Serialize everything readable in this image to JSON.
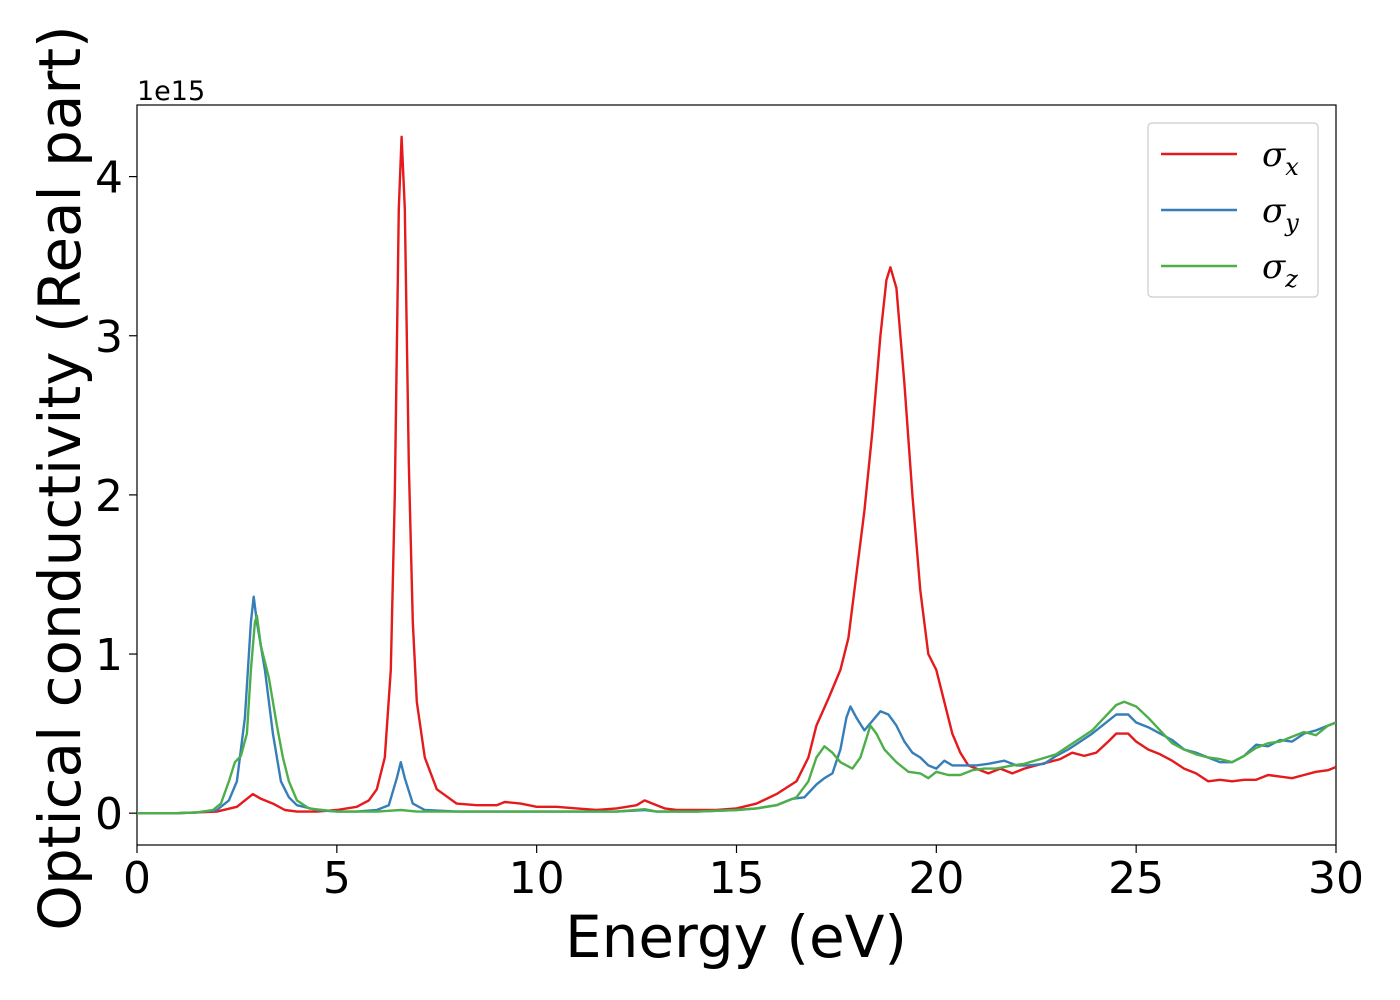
{
  "chart_data": {
    "type": "line",
    "title": "",
    "xlabel": "Energy (eV)",
    "ylabel": "Optical conductivity (Real part)",
    "y_offset_label": "1e15",
    "xlim": [
      0,
      30
    ],
    "ylim": [
      -0.2,
      4.45
    ],
    "x_ticks": [
      0,
      5,
      10,
      15,
      20,
      25,
      30
    ],
    "y_ticks": [
      0,
      1,
      2,
      3,
      4
    ],
    "grid": false,
    "legend_position": "top-right",
    "series": [
      {
        "name": "σx",
        "label_base": "σ",
        "label_sub": "x",
        "color": "#e41a1c",
        "points": [
          [
            0,
            0
          ],
          [
            1,
            0
          ],
          [
            1.5,
            0.005
          ],
          [
            2,
            0.01
          ],
          [
            2.5,
            0.04
          ],
          [
            2.7,
            0.08
          ],
          [
            2.9,
            0.12
          ],
          [
            3.1,
            0.09
          ],
          [
            3.4,
            0.06
          ],
          [
            3.7,
            0.02
          ],
          [
            4,
            0.01
          ],
          [
            4.5,
            0.01
          ],
          [
            5,
            0.02
          ],
          [
            5.5,
            0.04
          ],
          [
            5.8,
            0.08
          ],
          [
            6.0,
            0.15
          ],
          [
            6.2,
            0.35
          ],
          [
            6.35,
            0.9
          ],
          [
            6.45,
            2.0
          ],
          [
            6.55,
            3.8
          ],
          [
            6.62,
            4.25
          ],
          [
            6.7,
            3.8
          ],
          [
            6.8,
            2.2
          ],
          [
            6.9,
            1.2
          ],
          [
            7.0,
            0.7
          ],
          [
            7.2,
            0.35
          ],
          [
            7.5,
            0.15
          ],
          [
            8,
            0.06
          ],
          [
            8.5,
            0.05
          ],
          [
            9.0,
            0.05
          ],
          [
            9.2,
            0.07
          ],
          [
            9.6,
            0.06
          ],
          [
            10,
            0.04
          ],
          [
            10.5,
            0.04
          ],
          [
            11,
            0.03
          ],
          [
            11.5,
            0.02
          ],
          [
            12,
            0.03
          ],
          [
            12.5,
            0.05
          ],
          [
            12.7,
            0.08
          ],
          [
            12.9,
            0.06
          ],
          [
            13.2,
            0.03
          ],
          [
            13.5,
            0.02
          ],
          [
            14,
            0.02
          ],
          [
            14.5,
            0.02
          ],
          [
            15,
            0.03
          ],
          [
            15.5,
            0.06
          ],
          [
            16,
            0.12
          ],
          [
            16.5,
            0.2
          ],
          [
            16.8,
            0.35
          ],
          [
            17.0,
            0.55
          ],
          [
            17.3,
            0.72
          ],
          [
            17.6,
            0.9
          ],
          [
            17.8,
            1.1
          ],
          [
            18.0,
            1.5
          ],
          [
            18.2,
            1.9
          ],
          [
            18.4,
            2.4
          ],
          [
            18.6,
            3.0
          ],
          [
            18.75,
            3.35
          ],
          [
            18.85,
            3.43
          ],
          [
            19.0,
            3.3
          ],
          [
            19.2,
            2.7
          ],
          [
            19.4,
            2.0
          ],
          [
            19.6,
            1.4
          ],
          [
            19.8,
            1.0
          ],
          [
            20.0,
            0.9
          ],
          [
            20.2,
            0.7
          ],
          [
            20.4,
            0.5
          ],
          [
            20.6,
            0.38
          ],
          [
            20.8,
            0.3
          ],
          [
            21,
            0.28
          ],
          [
            21.3,
            0.25
          ],
          [
            21.6,
            0.28
          ],
          [
            21.9,
            0.25
          ],
          [
            22.2,
            0.28
          ],
          [
            22.5,
            0.3
          ],
          [
            22.8,
            0.32
          ],
          [
            23.1,
            0.34
          ],
          [
            23.4,
            0.38
          ],
          [
            23.7,
            0.36
          ],
          [
            24.0,
            0.38
          ],
          [
            24.3,
            0.45
          ],
          [
            24.5,
            0.5
          ],
          [
            24.8,
            0.5
          ],
          [
            25,
            0.45
          ],
          [
            25.3,
            0.4
          ],
          [
            25.6,
            0.37
          ],
          [
            25.9,
            0.33
          ],
          [
            26.2,
            0.28
          ],
          [
            26.5,
            0.25
          ],
          [
            26.8,
            0.2
          ],
          [
            27.1,
            0.21
          ],
          [
            27.4,
            0.2
          ],
          [
            27.7,
            0.21
          ],
          [
            28.0,
            0.21
          ],
          [
            28.3,
            0.24
          ],
          [
            28.6,
            0.23
          ],
          [
            28.9,
            0.22
          ],
          [
            29.2,
            0.24
          ],
          [
            29.5,
            0.26
          ],
          [
            29.8,
            0.27
          ],
          [
            30,
            0.29
          ]
        ]
      },
      {
        "name": "σy",
        "label_base": "σ",
        "label_sub": "y",
        "color": "#377eb8",
        "points": [
          [
            0,
            0
          ],
          [
            1,
            0
          ],
          [
            1.5,
            0.005
          ],
          [
            2,
            0.02
          ],
          [
            2.3,
            0.08
          ],
          [
            2.5,
            0.2
          ],
          [
            2.7,
            0.6
          ],
          [
            2.85,
            1.2
          ],
          [
            2.92,
            1.36
          ],
          [
            3.0,
            1.2
          ],
          [
            3.2,
            0.9
          ],
          [
            3.4,
            0.5
          ],
          [
            3.6,
            0.2
          ],
          [
            3.8,
            0.1
          ],
          [
            4,
            0.05
          ],
          [
            4.5,
            0.02
          ],
          [
            5,
            0.01
          ],
          [
            5.5,
            0.01
          ],
          [
            6.0,
            0.02
          ],
          [
            6.3,
            0.05
          ],
          [
            6.5,
            0.22
          ],
          [
            6.6,
            0.32
          ],
          [
            6.7,
            0.22
          ],
          [
            6.9,
            0.06
          ],
          [
            7.2,
            0.02
          ],
          [
            8,
            0.01
          ],
          [
            9,
            0.01
          ],
          [
            10,
            0.01
          ],
          [
            11,
            0.01
          ],
          [
            12,
            0.01
          ],
          [
            12.7,
            0.02
          ],
          [
            13,
            0.01
          ],
          [
            14,
            0.01
          ],
          [
            15,
            0.02
          ],
          [
            15.5,
            0.03
          ],
          [
            16,
            0.05
          ],
          [
            16.4,
            0.09
          ],
          [
            16.7,
            0.1
          ],
          [
            17.0,
            0.18
          ],
          [
            17.2,
            0.22
          ],
          [
            17.4,
            0.25
          ],
          [
            17.6,
            0.4
          ],
          [
            17.75,
            0.6
          ],
          [
            17.85,
            0.67
          ],
          [
            18.0,
            0.6
          ],
          [
            18.2,
            0.52
          ],
          [
            18.4,
            0.58
          ],
          [
            18.6,
            0.64
          ],
          [
            18.8,
            0.62
          ],
          [
            19.0,
            0.55
          ],
          [
            19.2,
            0.45
          ],
          [
            19.4,
            0.38
          ],
          [
            19.6,
            0.35
          ],
          [
            19.8,
            0.3
          ],
          [
            20.0,
            0.28
          ],
          [
            20.2,
            0.33
          ],
          [
            20.4,
            0.3
          ],
          [
            20.7,
            0.3
          ],
          [
            21,
            0.3
          ],
          [
            21.3,
            0.31
          ],
          [
            21.7,
            0.33
          ],
          [
            22.0,
            0.3
          ],
          [
            22.3,
            0.3
          ],
          [
            22.7,
            0.31
          ],
          [
            23.0,
            0.36
          ],
          [
            23.3,
            0.4
          ],
          [
            23.6,
            0.45
          ],
          [
            23.9,
            0.5
          ],
          [
            24.2,
            0.56
          ],
          [
            24.5,
            0.62
          ],
          [
            24.8,
            0.62
          ],
          [
            25.0,
            0.57
          ],
          [
            25.3,
            0.54
          ],
          [
            25.6,
            0.5
          ],
          [
            25.9,
            0.46
          ],
          [
            26.2,
            0.4
          ],
          [
            26.5,
            0.38
          ],
          [
            26.8,
            0.35
          ],
          [
            27.1,
            0.32
          ],
          [
            27.4,
            0.32
          ],
          [
            27.7,
            0.36
          ],
          [
            28.0,
            0.43
          ],
          [
            28.3,
            0.42
          ],
          [
            28.6,
            0.46
          ],
          [
            28.9,
            0.45
          ],
          [
            29.2,
            0.5
          ],
          [
            29.5,
            0.52
          ],
          [
            29.8,
            0.55
          ],
          [
            30,
            0.57
          ]
        ]
      },
      {
        "name": "σz",
        "label_base": "σ",
        "label_sub": "z",
        "color": "#4daf4a",
        "points": [
          [
            0,
            0
          ],
          [
            1,
            0
          ],
          [
            1.5,
            0.005
          ],
          [
            1.9,
            0.02
          ],
          [
            2.1,
            0.06
          ],
          [
            2.3,
            0.2
          ],
          [
            2.45,
            0.32
          ],
          [
            2.6,
            0.36
          ],
          [
            2.75,
            0.5
          ],
          [
            2.85,
            0.9
          ],
          [
            2.95,
            1.2
          ],
          [
            3.0,
            1.24
          ],
          [
            3.1,
            1.05
          ],
          [
            3.3,
            0.85
          ],
          [
            3.5,
            0.55
          ],
          [
            3.65,
            0.35
          ],
          [
            3.8,
            0.2
          ],
          [
            4.0,
            0.08
          ],
          [
            4.3,
            0.03
          ],
          [
            5,
            0.01
          ],
          [
            6,
            0.01
          ],
          [
            6.6,
            0.02
          ],
          [
            7,
            0.01
          ],
          [
            8,
            0.01
          ],
          [
            9,
            0.01
          ],
          [
            10,
            0.01
          ],
          [
            11,
            0.01
          ],
          [
            12,
            0.01
          ],
          [
            12.7,
            0.025
          ],
          [
            13,
            0.01
          ],
          [
            14,
            0.01
          ],
          [
            15,
            0.02
          ],
          [
            15.5,
            0.03
          ],
          [
            16,
            0.05
          ],
          [
            16.5,
            0.1
          ],
          [
            16.8,
            0.2
          ],
          [
            17.0,
            0.35
          ],
          [
            17.2,
            0.42
          ],
          [
            17.4,
            0.38
          ],
          [
            17.6,
            0.32
          ],
          [
            17.9,
            0.28
          ],
          [
            18.1,
            0.35
          ],
          [
            18.35,
            0.55
          ],
          [
            18.5,
            0.5
          ],
          [
            18.7,
            0.4
          ],
          [
            19.0,
            0.32
          ],
          [
            19.3,
            0.26
          ],
          [
            19.6,
            0.25
          ],
          [
            19.8,
            0.22
          ],
          [
            20.0,
            0.26
          ],
          [
            20.3,
            0.24
          ],
          [
            20.6,
            0.24
          ],
          [
            20.9,
            0.27
          ],
          [
            21.2,
            0.28
          ],
          [
            21.5,
            0.28
          ],
          [
            21.9,
            0.3
          ],
          [
            22.2,
            0.31
          ],
          [
            22.6,
            0.34
          ],
          [
            23.0,
            0.37
          ],
          [
            23.3,
            0.42
          ],
          [
            23.6,
            0.47
          ],
          [
            23.9,
            0.52
          ],
          [
            24.2,
            0.6
          ],
          [
            24.5,
            0.68
          ],
          [
            24.7,
            0.7
          ],
          [
            25.0,
            0.67
          ],
          [
            25.3,
            0.6
          ],
          [
            25.6,
            0.52
          ],
          [
            25.9,
            0.44
          ],
          [
            26.2,
            0.4
          ],
          [
            26.5,
            0.37
          ],
          [
            26.8,
            0.35
          ],
          [
            27.1,
            0.34
          ],
          [
            27.4,
            0.32
          ],
          [
            27.7,
            0.36
          ],
          [
            28.0,
            0.41
          ],
          [
            28.3,
            0.44
          ],
          [
            28.6,
            0.45
          ],
          [
            28.9,
            0.48
          ],
          [
            29.2,
            0.51
          ],
          [
            29.5,
            0.49
          ],
          [
            29.8,
            0.55
          ],
          [
            30,
            0.57
          ]
        ]
      }
    ]
  }
}
